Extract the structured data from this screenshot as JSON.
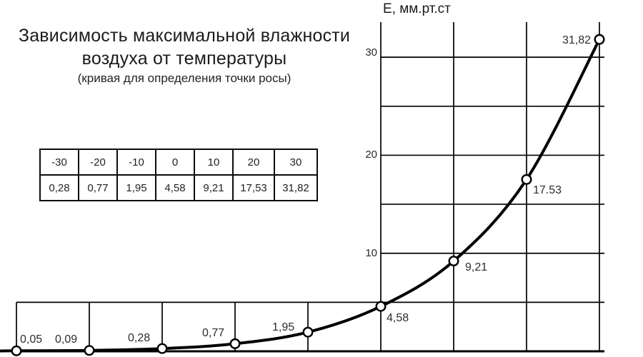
{
  "page": {
    "background": "#ffffff",
    "ink": "#000000"
  },
  "title": {
    "line1": "Зависимость максимальной влажности",
    "line2": "воздуха от температуры",
    "subtitle": "(кривая для определения точки росы)"
  },
  "axis": {
    "y_label": "Е, мм.рт.ст"
  },
  "table": {
    "row_temperature": [
      "-30",
      "-20",
      "-10",
      "0",
      "10",
      "20",
      "30"
    ],
    "row_humidity": [
      "0,28",
      "0,77",
      "1,95",
      "4,58",
      "9,21",
      "17,53",
      "31,82"
    ]
  },
  "chart_data": {
    "type": "line",
    "title": "Зависимость максимальной влажности воздуха от температуры (кривая для определения точки росы)",
    "xlabel": "",
    "ylabel": "Е, мм.рт.ст",
    "x": [
      -50,
      -40,
      -30,
      -20,
      -10,
      0,
      10,
      20,
      30
    ],
    "series": [
      {
        "name": "Максимальная влажность E, мм.рт.ст",
        "values": [
          0.05,
          0.09,
          0.28,
          0.77,
          1.95,
          4.58,
          9.21,
          17.53,
          31.82
        ]
      }
    ],
    "point_labels": [
      "0,05",
      "0,09",
      "0,28",
      "0,77",
      "1,95",
      "4,58",
      "9,21",
      "17.53",
      "31,82"
    ],
    "y_ticks": [
      30,
      20,
      10
    ],
    "ylim": [
      0,
      33.6
    ],
    "xlim": [
      -52.3,
      30.7
    ],
    "grid": true,
    "legend_position": "none",
    "line_color": "#000000",
    "marker": "open-circle",
    "marker_fill": "#ffffff"
  }
}
